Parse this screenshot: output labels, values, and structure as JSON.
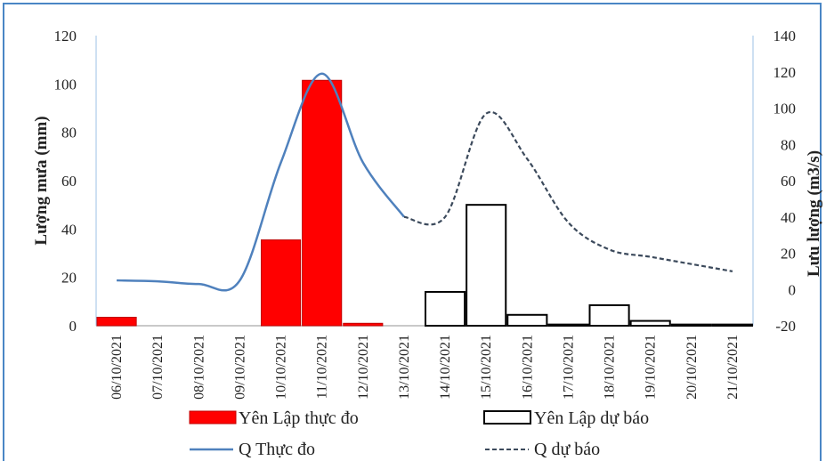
{
  "chart_data": {
    "type": "bar",
    "categories": [
      "06/10/2021",
      "07/10/2021",
      "08/10/2021",
      "09/10/2021",
      "10/10/2021",
      "11/10/2021",
      "12/10/2021",
      "13/10/2021",
      "14/10/2021",
      "15/10/2021",
      "16/10/2021",
      "17/10/2021",
      "18/10/2021",
      "19/10/2021",
      "20/10/2021",
      "21/10/2021"
    ],
    "ylabel": "Lượng mưa (mm)",
    "y2label": "Lưu lượng (m3/s)",
    "ylim": [
      0,
      120
    ],
    "y2lim": [
      -20,
      140
    ],
    "yticks": [
      "0",
      "20",
      "40",
      "60",
      "80",
      "100",
      "120"
    ],
    "y2ticks": [
      "-20",
      "0",
      "20",
      "40",
      "60",
      "80",
      "100",
      "120",
      "140"
    ],
    "series": [
      {
        "name": "Yên Lập thực đo",
        "type": "bar",
        "axis": "left",
        "color": "#ff0000",
        "values": [
          3.5,
          0,
          0,
          0,
          35.5,
          101.5,
          1,
          0,
          null,
          null,
          null,
          null,
          null,
          null,
          null,
          null
        ]
      },
      {
        "name": "Yên Lập dự báo",
        "type": "bar",
        "axis": "left",
        "color": "#ffffff",
        "values": [
          null,
          null,
          null,
          null,
          null,
          null,
          null,
          null,
          14,
          50,
          4.5,
          0.5,
          8.5,
          2,
          0.5,
          0.5
        ]
      },
      {
        "name": "Q Thực đo",
        "type": "line",
        "axis": "right",
        "color": "#4f81bd",
        "values": [
          5,
          4.5,
          3,
          5,
          70,
          119,
          70,
          40,
          null,
          null,
          null,
          null,
          null,
          null,
          null,
          null
        ]
      },
      {
        "name": "Q dự báo",
        "type": "line",
        "axis": "right",
        "color": "#3c4a5c",
        "dashed": true,
        "values": [
          null,
          null,
          null,
          null,
          null,
          null,
          null,
          40,
          40,
          97,
          72,
          37,
          22,
          18,
          14,
          10
        ]
      }
    ],
    "legend_position": "bottom",
    "grid": false
  }
}
